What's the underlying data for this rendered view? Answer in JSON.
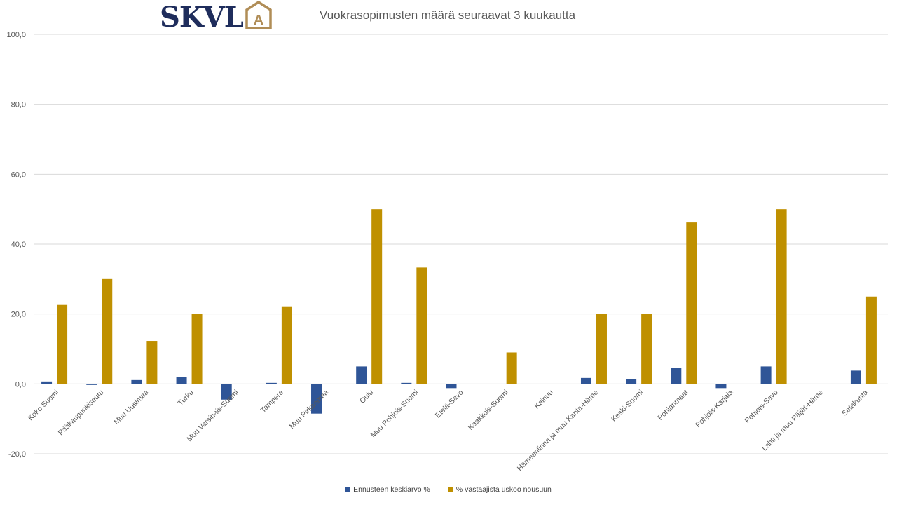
{
  "logo": {
    "text": "SKVL",
    "badge_letter": "A",
    "text_color": "#1f2d5c",
    "badge_color": "#b08d57"
  },
  "chart_data": {
    "type": "bar",
    "title": "Vuokrasopimusten määrä seuraavat 3 kuukautta",
    "xlabel": "",
    "ylabel": "",
    "ylim": [
      -20,
      100
    ],
    "yticks": [
      "100,0",
      "80,0",
      "60,0",
      "40,0",
      "20,0",
      "0,0",
      "-20,0"
    ],
    "ytick_values": [
      100,
      80,
      60,
      40,
      20,
      0,
      -20
    ],
    "grid": true,
    "legend_position": "bottom",
    "categories": [
      "Koko Suomi",
      "Pääkaupunkiseutu",
      "Muu Uusimaa",
      "Turku",
      "Muu Varsinais-Suomi",
      "Tampere",
      "Muu Pirkanmaa",
      "Oulu",
      "Muu Pohjois-Suomi",
      "Etelä-Savo",
      "Kaakkois-Suomi",
      "Kainuu",
      "Hämeenlinna ja muu Kanta-Häme",
      "Keski-Suomi",
      "Pohjanmaat",
      "Pohjois-Karjala",
      "Pohjois-Savo",
      "Lahti ja muu Päijät-Häme",
      "Satakunta"
    ],
    "series": [
      {
        "name": "Ennusteen keskiarvo %",
        "color": "#2f5597",
        "values": [
          0.7,
          -0.3,
          1.1,
          1.9,
          -4.5,
          0.3,
          -8.5,
          5.0,
          0.3,
          -1.2,
          0,
          0,
          1.7,
          1.3,
          4.5,
          -1.2,
          5.0,
          0,
          3.8
        ]
      },
      {
        "name": "% vastaajista uskoo  nousuun",
        "color": "#bf9000",
        "values": [
          22.6,
          30.0,
          12.3,
          20.0,
          0,
          22.2,
          0,
          50.0,
          33.3,
          0,
          9.0,
          0,
          20.0,
          20.0,
          46.2,
          0,
          50.0,
          0,
          25.0
        ]
      }
    ]
  }
}
